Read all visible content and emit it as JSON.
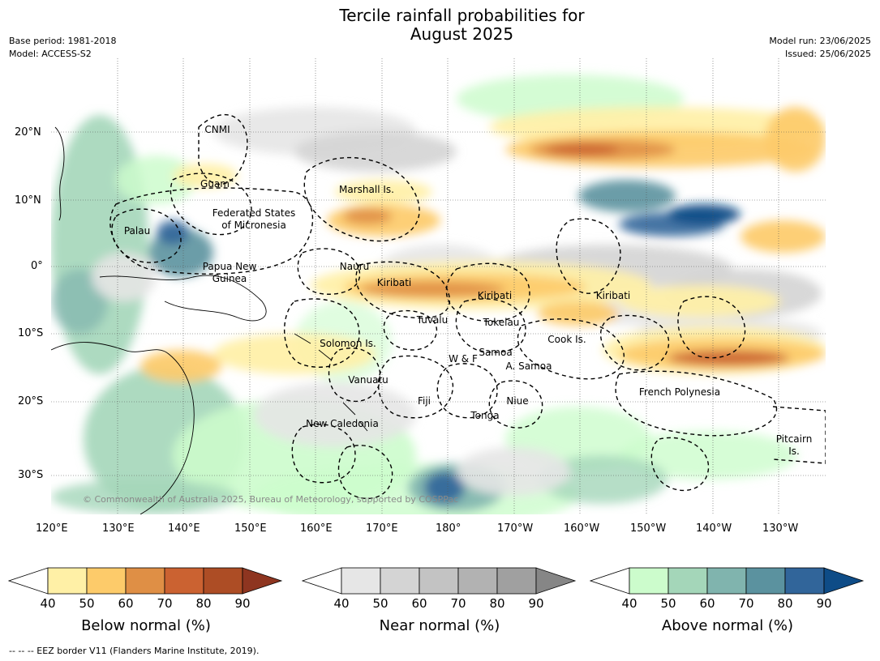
{
  "header": {
    "title_line1": "Tercile rainfall probabilities for",
    "title_line2": "August 2025",
    "base_period": "Base period: 1981-2018",
    "model": "Model: ACCESS-S2",
    "model_run": "Model run: 23/06/2025",
    "issued": "Issued: 25/06/2025"
  },
  "axes": {
    "lon_labels": [
      "120°E",
      "130°E",
      "140°E",
      "150°E",
      "160°E",
      "170°E",
      "180°",
      "170°W",
      "160°W",
      "150°W",
      "140°W",
      "130°W"
    ],
    "lat_labels": [
      "20°N",
      "10°N",
      "0°",
      "10°S",
      "20°S",
      "30°S"
    ]
  },
  "map": {
    "regions": [
      "CNMI",
      "Guam",
      "Marshall Is.",
      "Federated States",
      "of Micronesia",
      "Palau",
      "Papua New",
      "Guinea",
      "Nauru",
      "Kiribati",
      "Kiribati",
      "Kiribati",
      "Tuvalu",
      "Tokelau",
      "Cook Is.",
      "Solomon Is.",
      "W & F",
      "Samoa",
      "A. Samoa",
      "Vanuatu",
      "Fiji",
      "Niue",
      "French Polynesia",
      "New Caledonia",
      "Tonga",
      "Pitcairn",
      "Is."
    ],
    "copyright": "© Commonwealth of Australia 2025, Bureau of Meteorology, supported by COSPPac"
  },
  "colorbars": [
    {
      "label": "Below normal (%)",
      "ticks": [
        "40",
        "50",
        "60",
        "70",
        "80",
        "90"
      ],
      "colors": [
        "#ffffff",
        "#fff0a6",
        "#fdcb6a",
        "#df8f45",
        "#cb6231",
        "#ad4d25",
        "#8e3520"
      ]
    },
    {
      "label": "Near normal (%)",
      "ticks": [
        "40",
        "50",
        "60",
        "70",
        "80",
        "90"
      ],
      "colors": [
        "#ffffff",
        "#e6e6e6",
        "#d4d4d4",
        "#c3c3c3",
        "#b2b2b2",
        "#a0a0a0",
        "#868686"
      ]
    },
    {
      "label": "Above normal (%)",
      "ticks": [
        "40",
        "50",
        "60",
        "70",
        "80",
        "90"
      ],
      "colors": [
        "#ffffff",
        "#ccfccc",
        "#a4d6b9",
        "#80b4ae",
        "#5b929f",
        "#31659a",
        "#0e4c87"
      ]
    }
  ],
  "footnote": "--  --  -- EEZ border V11 (Flanders Marine Institute, 2019)."
}
